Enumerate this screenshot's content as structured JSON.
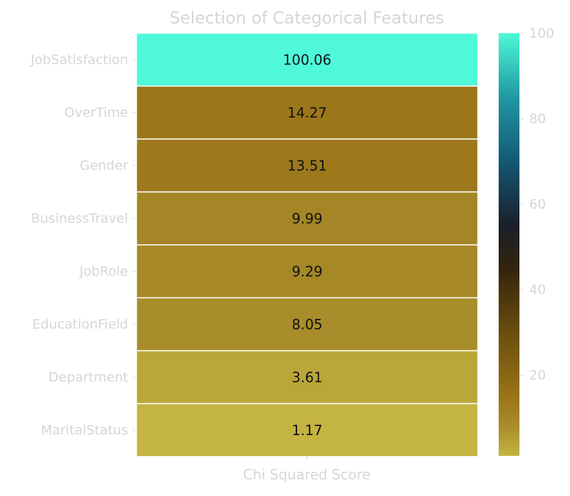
{
  "chart_data": {
    "type": "heatmap",
    "title": "Selection of Categorical Features",
    "xlabel": "Chi Squared Score",
    "ylabel": "",
    "rows": [
      "JobSatisfaction",
      "OverTime",
      "Gender",
      "BusinessTravel",
      "JobRole",
      "EducationField",
      "Department",
      "MaritalStatus"
    ],
    "values": [
      100.06,
      14.27,
      13.51,
      9.99,
      9.29,
      8.05,
      3.61,
      1.17
    ],
    "value_labels": [
      "100.06",
      "14.27",
      "13.51",
      "9.99",
      "9.29",
      "8.05",
      "3.61",
      "1.17"
    ],
    "colorbar": {
      "range": [
        1.17,
        100.06
      ],
      "ticks": [
        20,
        40,
        60,
        80,
        100
      ],
      "tick_labels": [
        "20",
        "40",
        "60",
        "80",
        "100"
      ],
      "colormap": [
        {
          "value": 1.17,
          "color": "#c4b441"
        },
        {
          "value": 8,
          "color": "#aa8d2b"
        },
        {
          "value": 15,
          "color": "#9a7418"
        },
        {
          "value": 30,
          "color": "#6a4e0e"
        },
        {
          "value": 45,
          "color": "#33240e"
        },
        {
          "value": 55,
          "color": "#1b1e2a"
        },
        {
          "value": 70,
          "color": "#145974"
        },
        {
          "value": 85,
          "color": "#1f98a2"
        },
        {
          "value": 100.06,
          "color": "#4ef8d8"
        }
      ]
    },
    "grid": false,
    "legend": "colorbar-right"
  }
}
